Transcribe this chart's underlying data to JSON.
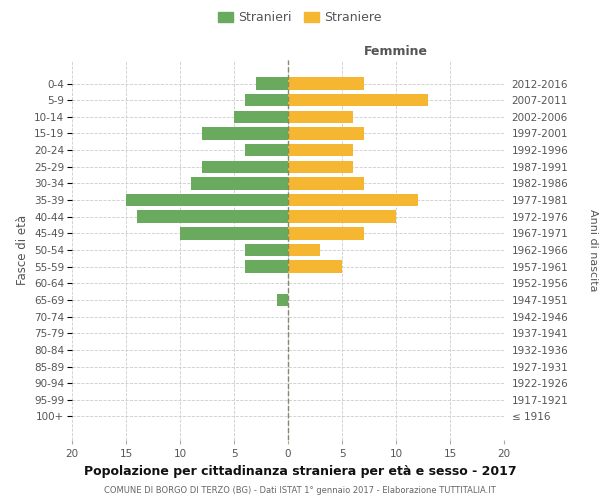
{
  "age_groups": [
    "100+",
    "95-99",
    "90-94",
    "85-89",
    "80-84",
    "75-79",
    "70-74",
    "65-69",
    "60-64",
    "55-59",
    "50-54",
    "45-49",
    "40-44",
    "35-39",
    "30-34",
    "25-29",
    "20-24",
    "15-19",
    "10-14",
    "5-9",
    "0-4"
  ],
  "birth_years": [
    "≤ 1916",
    "1917-1921",
    "1922-1926",
    "1927-1931",
    "1932-1936",
    "1937-1941",
    "1942-1946",
    "1947-1951",
    "1952-1956",
    "1957-1961",
    "1962-1966",
    "1967-1971",
    "1972-1976",
    "1977-1981",
    "1982-1986",
    "1987-1991",
    "1992-1996",
    "1997-2001",
    "2002-2006",
    "2007-2011",
    "2012-2016"
  ],
  "males": [
    0,
    0,
    0,
    0,
    0,
    0,
    0,
    1,
    0,
    4,
    4,
    10,
    14,
    15,
    9,
    8,
    4,
    8,
    5,
    4,
    3
  ],
  "females": [
    0,
    0,
    0,
    0,
    0,
    0,
    0,
    0,
    0,
    5,
    3,
    7,
    10,
    12,
    7,
    6,
    6,
    7,
    6,
    13,
    7
  ],
  "male_color": "#6aaa5e",
  "female_color": "#f5b731",
  "title": "Popolazione per cittadinanza straniera per età e sesso - 2017",
  "subtitle": "COMUNE DI BORGO DI TERZO (BG) - Dati ISTAT 1° gennaio 2017 - Elaborazione TUTTITALIA.IT",
  "ylabel_left": "Fasce di età",
  "ylabel_right": "Anni di nascita",
  "xlabel_right": "Femmine",
  "legend_male": "Stranieri",
  "legend_female": "Straniere",
  "xlim": 20,
  "bg_color": "#ffffff",
  "grid_color": "#cccccc",
  "bar_height": 0.75
}
